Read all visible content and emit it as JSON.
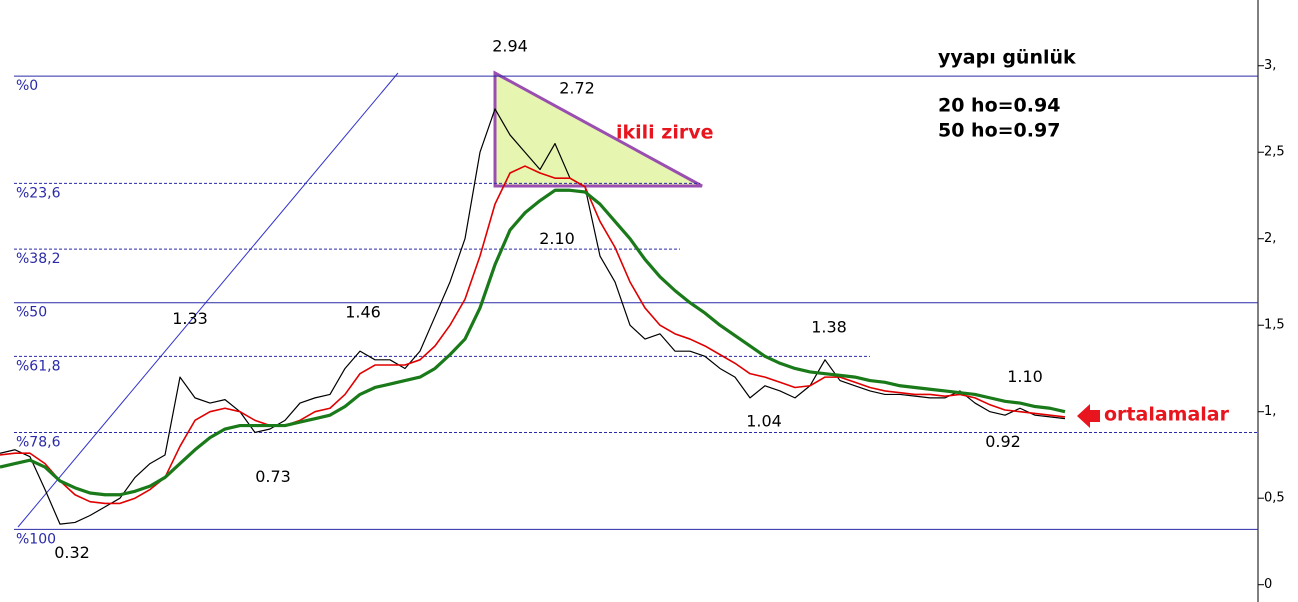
{
  "chart_data": {
    "type": "line",
    "title": "yyapı günlük",
    "notes": [
      "20 ho=0.94",
      "50 ho=0.97"
    ],
    "annotations": {
      "pattern": "ikili zirve",
      "averages": "ortalamalar"
    },
    "ylim": [
      -0.1,
      3.38
    ],
    "yticks": [
      {
        "value": 0,
        "label": "0"
      },
      {
        "value": 0.5,
        "label": "0,5"
      },
      {
        "value": 1,
        "label": "1,"
      },
      {
        "value": 1.5,
        "label": "1,5"
      },
      {
        "value": 2,
        "label": "2,"
      },
      {
        "value": 2.5,
        "label": "2,5"
      },
      {
        "value": 3,
        "label": "3,"
      }
    ],
    "fib_levels": [
      {
        "label": "%0",
        "value": 2.94,
        "style": "solid"
      },
      {
        "label": "%23,6",
        "value": 2.32,
        "style": "dashed"
      },
      {
        "label": "%38,2",
        "value": 1.94,
        "style": "dashed"
      },
      {
        "label": "%50",
        "value": 1.63,
        "style": "solid"
      },
      {
        "label": "%61,8",
        "value": 1.32,
        "style": "dashed"
      },
      {
        "label": "%78,6",
        "value": 0.88,
        "style": "dashed"
      },
      {
        "label": "%100",
        "value": 0.32,
        "style": "solid"
      }
    ],
    "peaks": [
      2.94,
      2.72,
      {
        "value": 2.1,
        "label": "2.10"
      },
      1.33,
      1.46,
      0.73,
      0.32,
      1.04,
      1.38,
      {
        "value": 1.1,
        "label": "1.10"
      },
      0.92
    ],
    "series": [
      {
        "color": "#000000",
        "values": [
          0.76,
          0.78,
          0.74,
          0.55,
          0.35,
          0.36,
          0.4,
          0.45,
          0.5,
          0.62,
          0.7,
          0.75,
          1.2,
          1.08,
          1.05,
          1.07,
          1.0,
          0.88,
          0.9,
          0.95,
          1.05,
          1.08,
          1.1,
          1.25,
          1.35,
          1.3,
          1.3,
          1.25,
          1.35,
          1.55,
          1.75,
          2.0,
          2.5,
          2.75,
          2.6,
          2.5,
          2.4,
          2.55,
          2.35,
          2.3,
          1.9,
          1.75,
          1.5,
          1.42,
          1.45,
          1.35,
          1.35,
          1.32,
          1.25,
          1.2,
          1.08,
          1.15,
          1.12,
          1.08,
          1.15,
          1.3,
          1.18,
          1.15,
          1.12,
          1.1,
          1.1,
          1.09,
          1.08,
          1.08,
          1.12,
          1.05,
          1.0,
          0.98,
          1.02,
          0.98,
          0.97,
          0.96
        ]
      },
      {
        "color": "#e00000",
        "values": [
          0.75,
          0.76,
          0.76,
          0.7,
          0.6,
          0.52,
          0.48,
          0.47,
          0.47,
          0.5,
          0.55,
          0.62,
          0.8,
          0.95,
          1.0,
          1.02,
          1.0,
          0.95,
          0.92,
          0.92,
          0.95,
          1.0,
          1.02,
          1.1,
          1.22,
          1.27,
          1.27,
          1.27,
          1.3,
          1.38,
          1.5,
          1.65,
          1.9,
          2.2,
          2.38,
          2.42,
          2.38,
          2.35,
          2.35,
          2.3,
          2.1,
          1.95,
          1.75,
          1.6,
          1.5,
          1.45,
          1.42,
          1.38,
          1.33,
          1.28,
          1.22,
          1.2,
          1.17,
          1.14,
          1.15,
          1.2,
          1.2,
          1.17,
          1.14,
          1.12,
          1.11,
          1.1,
          1.1,
          1.09,
          1.1,
          1.08,
          1.04,
          1.01,
          1.0,
          0.99,
          0.98,
          0.97
        ]
      },
      {
        "color": "#1a7a1a",
        "values": [
          0.68,
          0.7,
          0.72,
          0.68,
          0.6,
          0.56,
          0.53,
          0.52,
          0.52,
          0.54,
          0.57,
          0.62,
          0.7,
          0.78,
          0.85,
          0.9,
          0.92,
          0.92,
          0.92,
          0.92,
          0.94,
          0.96,
          0.98,
          1.03,
          1.1,
          1.14,
          1.16,
          1.18,
          1.2,
          1.25,
          1.33,
          1.42,
          1.6,
          1.85,
          2.05,
          2.15,
          2.22,
          2.28,
          2.28,
          2.27,
          2.2,
          2.1,
          2.0,
          1.88,
          1.78,
          1.7,
          1.63,
          1.57,
          1.5,
          1.44,
          1.38,
          1.32,
          1.28,
          1.25,
          1.23,
          1.22,
          1.21,
          1.2,
          1.18,
          1.17,
          1.15,
          1.14,
          1.13,
          1.12,
          1.11,
          1.1,
          1.08,
          1.06,
          1.05,
          1.03,
          1.02,
          1.0
        ]
      }
    ]
  }
}
